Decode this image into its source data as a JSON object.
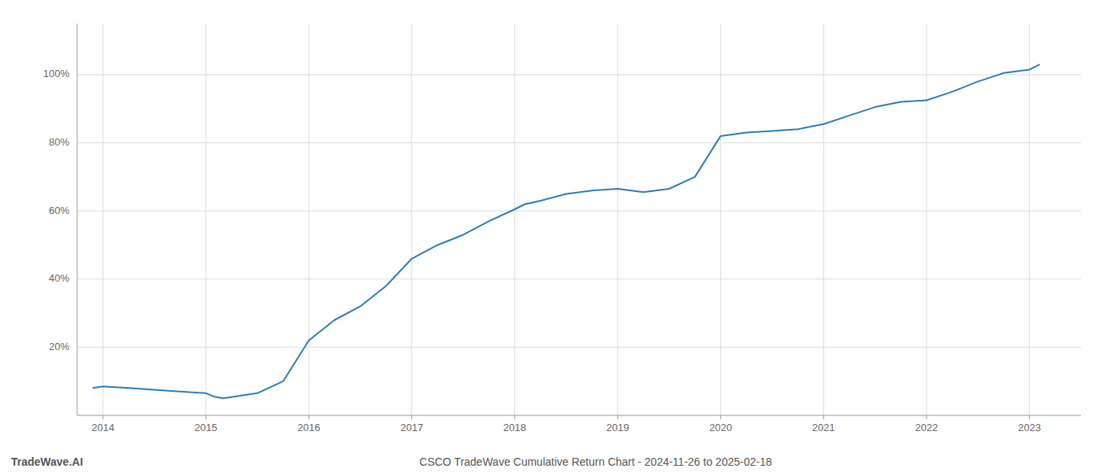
{
  "chart_data": {
    "type": "line",
    "title": "CSCO TradeWave Cumulative Return Chart - 2024-11-26 to 2025-02-18",
    "annotations": [
      "TradeWave.AI"
    ],
    "x": [
      2013.9,
      2014.0,
      2014.25,
      2014.5,
      2014.75,
      2015.0,
      2015.08,
      2015.17,
      2015.5,
      2015.75,
      2016.0,
      2016.25,
      2016.5,
      2016.75,
      2017.0,
      2017.25,
      2017.5,
      2017.75,
      2018.0,
      2018.1,
      2018.25,
      2018.5,
      2018.75,
      2019.0,
      2019.25,
      2019.5,
      2019.75,
      2020.0,
      2020.25,
      2020.5,
      2020.75,
      2021.0,
      2021.25,
      2021.5,
      2021.75,
      2022.0,
      2022.25,
      2022.5,
      2022.75,
      2023.0,
      2023.1
    ],
    "values": [
      8.0,
      8.5,
      8.0,
      7.5,
      7.0,
      6.5,
      5.5,
      5.0,
      6.5,
      10.0,
      22.0,
      28.0,
      32.0,
      38.0,
      46.0,
      50.0,
      53.0,
      57.0,
      60.5,
      62.0,
      63.0,
      65.0,
      66.0,
      66.5,
      65.5,
      66.5,
      70.0,
      82.0,
      83.0,
      83.5,
      84.0,
      85.5,
      88.0,
      90.5,
      92.0,
      92.5,
      95.0,
      98.0,
      100.5,
      101.5,
      103.0
    ],
    "color": "#2b7bba",
    "xlim": [
      2013.75,
      2023.5
    ],
    "ylim": [
      0,
      115
    ],
    "xticks": [
      2014,
      2015,
      2016,
      2017,
      2018,
      2019,
      2020,
      2021,
      2022,
      2023
    ],
    "yticks": [
      {
        "value": 20,
        "label": "20%"
      },
      {
        "value": 40,
        "label": "40%"
      },
      {
        "value": 60,
        "label": "60%"
      },
      {
        "value": 80,
        "label": "80%"
      },
      {
        "value": 100,
        "label": "100%"
      }
    ],
    "grid": true
  }
}
